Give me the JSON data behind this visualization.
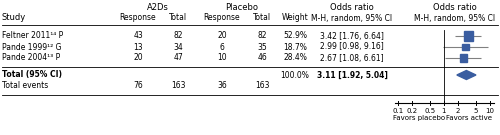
{
  "studies": [
    {
      "label": "Feltner 2011¹⁴ P",
      "a2d_resp": 43,
      "a2d_total": 82,
      "plac_resp": 20,
      "plac_total": 82,
      "weight": "52.9%",
      "or_text": "3.42 [1.76, 6.64]",
      "or": 3.42,
      "ci_lo": 1.76,
      "ci_hi": 6.64
    },
    {
      "label": "Pande 1999¹² G",
      "a2d_resp": 13,
      "a2d_total": 34,
      "plac_resp": 6,
      "plac_total": 35,
      "weight": "18.7%",
      "or_text": "2.99 [0.98, 9.16]",
      "or": 2.99,
      "ci_lo": 0.98,
      "ci_hi": 9.16
    },
    {
      "label": "Pande 2004¹³ P",
      "a2d_resp": 20,
      "a2d_total": 47,
      "plac_resp": 10,
      "plac_total": 46,
      "weight": "28.4%",
      "or_text": "2.67 [1.08, 6.61]",
      "or": 2.67,
      "ci_lo": 1.08,
      "ci_hi": 6.61
    }
  ],
  "total": {
    "label": "Total (95% CI)",
    "weight": "100.0%",
    "or_text": "3.11 [1.92, 5.04]",
    "or": 3.11,
    "ci_lo": 1.92,
    "ci_hi": 5.04
  },
  "total_events": {
    "label": "Total events",
    "a2d_resp": 76,
    "a2d_total": 163,
    "plac_resp": 36,
    "plac_total": 163
  },
  "axis_ticks": [
    0.1,
    0.2,
    0.5,
    1,
    2,
    5,
    10
  ],
  "axis_labels": [
    "0.1",
    "0.2",
    "0.5",
    "1",
    "2",
    "5",
    "10"
  ],
  "xlabel_left": "Favors placebo",
  "xlabel_right": "Favors active",
  "diamond_color": "#3A5DA0",
  "square_color": "#3A5DA0",
  "line_color": "#808080",
  "text_color": "#000000",
  "bg_color": "#ffffff",
  "header1_a2ds": "A2Ds",
  "header1_placebo": "Placebo",
  "header1_or1": "Odds ratio",
  "header1_or2": "Odds ratio",
  "header2_study": "Study",
  "header2_resp": "Response",
  "header2_total": "Total",
  "header2_weight": "Weight",
  "header2_mh": "M-H, random, 95% CI",
  "fs_header": 6.0,
  "fs_body": 5.5,
  "fs_axis": 5.0
}
